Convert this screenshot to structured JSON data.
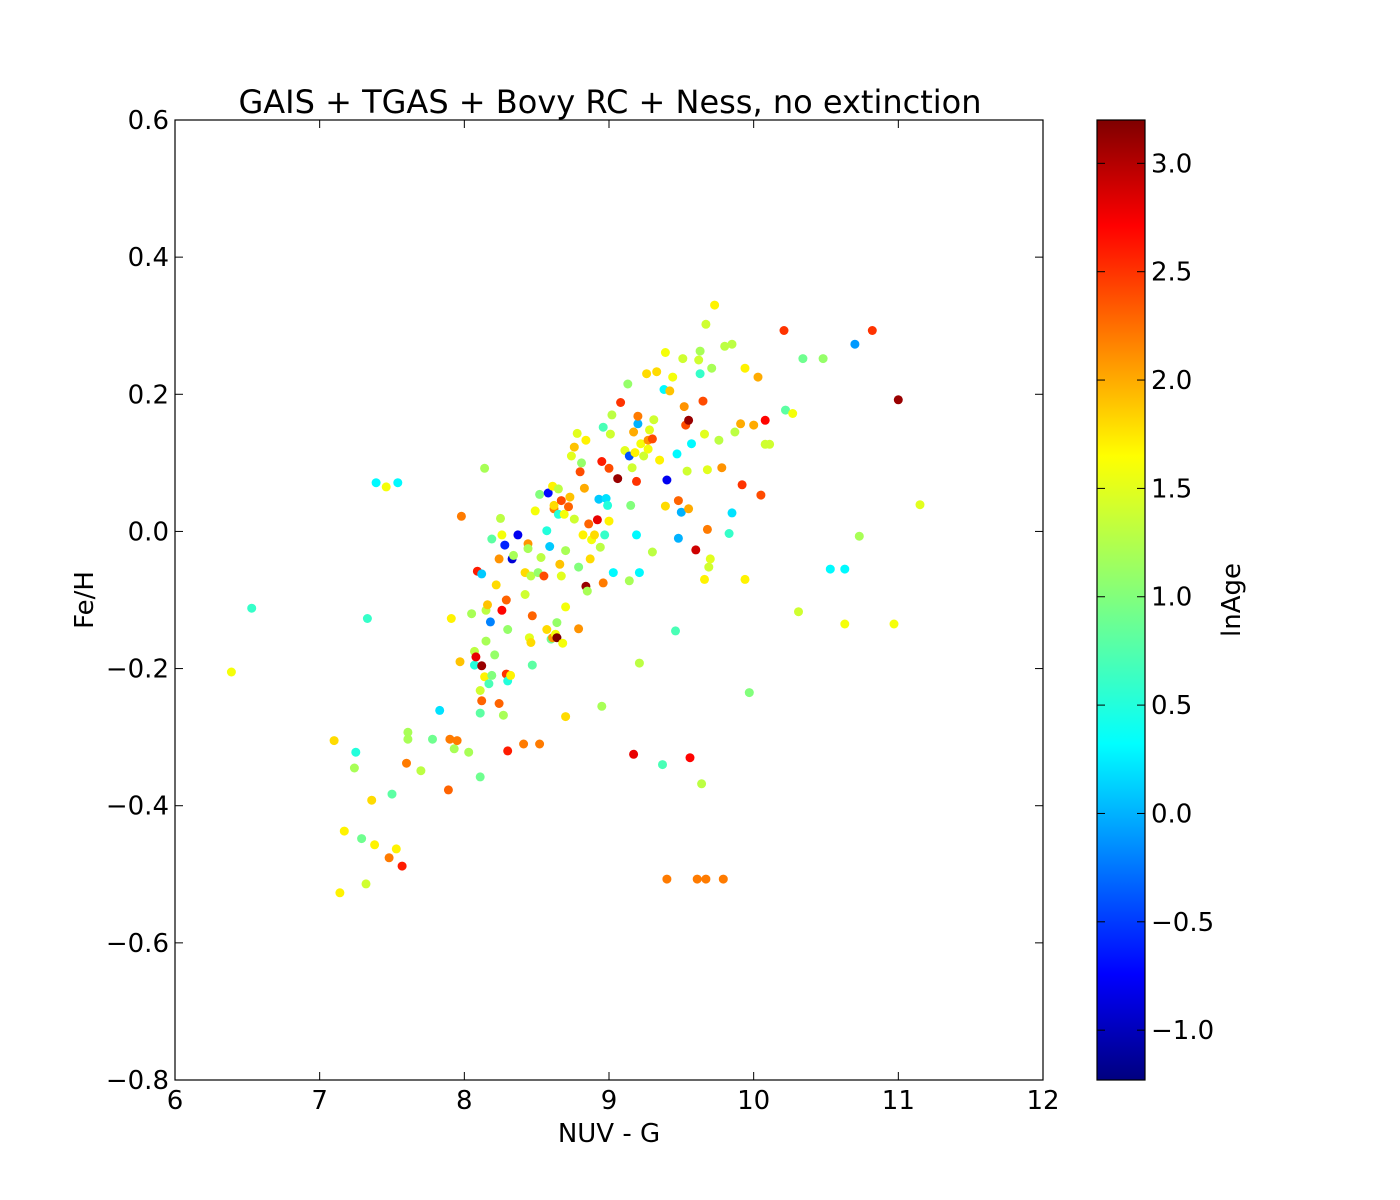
{
  "chart_data": {
    "type": "scatter",
    "title": "GAIS + TGAS + Bovy RC + Ness, no extinction",
    "xlabel": "NUV - G",
    "ylabel": "Fe/H",
    "xlim": [
      6,
      12
    ],
    "ylim": [
      -0.8,
      0.6
    ],
    "xticks": [
      6,
      7,
      8,
      9,
      10,
      11,
      12
    ],
    "yticks": [
      -0.8,
      -0.6,
      -0.4,
      -0.2,
      0.0,
      0.2,
      0.4,
      0.6
    ],
    "x_tick_labels": [
      "6",
      "7",
      "8",
      "9",
      "10",
      "11",
      "12"
    ],
    "y_tick_labels": [
      "−0.8",
      "−0.6",
      "−0.4",
      "−0.2",
      "0.0",
      "0.2",
      "0.4",
      "0.6"
    ],
    "grid": false,
    "colorbar": {
      "label": "lnAge",
      "range": [
        -1.23,
        3.2
      ],
      "ticks": [
        -1.0,
        -0.5,
        0.0,
        0.5,
        1.0,
        1.5,
        2.0,
        2.5,
        3.0
      ],
      "tick_labels": [
        "−1.0",
        "−0.5",
        "0.0",
        "0.5",
        "1.0",
        "1.5",
        "2.0",
        "2.5",
        "3.0"
      ],
      "colormap": "jet",
      "colormap_stops": [
        "#00007f",
        "#0000ff",
        "#00ffff",
        "#7fff7f",
        "#ffff00",
        "#ff0000",
        "#7f0000"
      ]
    },
    "points": [
      [
        6.39,
        -0.205,
        1.6
      ],
      [
        6.53,
        -0.112,
        0.6
      ],
      [
        7.1,
        -0.305,
        1.8
      ],
      [
        7.14,
        -0.527,
        1.7
      ],
      [
        7.17,
        -0.437,
        1.7
      ],
      [
        7.24,
        -0.345,
        1.2
      ],
      [
        7.25,
        -0.322,
        0.5
      ],
      [
        7.29,
        -0.448,
        0.9
      ],
      [
        7.32,
        -0.514,
        1.4
      ],
      [
        7.33,
        -0.127,
        0.6
      ],
      [
        7.36,
        -0.392,
        1.8
      ],
      [
        7.38,
        -0.457,
        1.7
      ],
      [
        7.39,
        0.071,
        0.3
      ],
      [
        7.46,
        0.065,
        1.6
      ],
      [
        7.48,
        -0.476,
        2.2
      ],
      [
        7.5,
        -0.383,
        0.8
      ],
      [
        7.53,
        -0.463,
        1.7
      ],
      [
        7.54,
        0.071,
        0.3
      ],
      [
        7.57,
        -0.488,
        2.6
      ],
      [
        7.6,
        -0.338,
        2.2
      ],
      [
        7.61,
        -0.293,
        1.2
      ],
      [
        7.61,
        -0.303,
        1.2
      ],
      [
        7.7,
        -0.349,
        1.3
      ],
      [
        7.78,
        -0.303,
        0.9
      ],
      [
        7.83,
        -0.261,
        0.2
      ],
      [
        7.89,
        -0.377,
        2.3
      ],
      [
        7.9,
        -0.303,
        2.2
      ],
      [
        7.91,
        -0.127,
        1.7
      ],
      [
        7.93,
        -0.317,
        1.2
      ],
      [
        7.95,
        -0.305,
        2.2
      ],
      [
        7.97,
        -0.19,
        1.9
      ],
      [
        7.98,
        0.022,
        2.2
      ],
      [
        8.03,
        -0.322,
        1.2
      ],
      [
        8.05,
        -0.12,
        1.2
      ],
      [
        8.07,
        -0.175,
        1.3
      ],
      [
        8.07,
        -0.195,
        0.5
      ],
      [
        8.08,
        -0.183,
        2.8
      ],
      [
        8.09,
        -0.058,
        2.6
      ],
      [
        8.11,
        -0.232,
        1.4
      ],
      [
        8.11,
        -0.265,
        0.8
      ],
      [
        8.11,
        -0.358,
        0.9
      ],
      [
        8.12,
        -0.062,
        0.1
      ],
      [
        8.12,
        -0.247,
        2.3
      ],
      [
        8.12,
        -0.196,
        3.1
      ],
      [
        8.14,
        -0.212,
        1.7
      ],
      [
        8.14,
        0.092,
        1.2
      ],
      [
        8.15,
        -0.115,
        1.3
      ],
      [
        8.15,
        -0.16,
        1.2
      ],
      [
        8.16,
        -0.107,
        1.9
      ],
      [
        8.17,
        -0.222,
        0.7
      ],
      [
        8.18,
        -0.132,
        -0.2
      ],
      [
        8.19,
        -0.21,
        1.0
      ],
      [
        8.19,
        -0.011,
        0.8
      ],
      [
        8.21,
        -0.18,
        1.1
      ],
      [
        8.22,
        -0.078,
        1.8
      ],
      [
        8.24,
        -0.251,
        2.3
      ],
      [
        8.24,
        -0.04,
        2.1
      ],
      [
        8.25,
        0.019,
        1.3
      ],
      [
        8.26,
        -0.115,
        2.7
      ],
      [
        8.26,
        -0.005,
        1.6
      ],
      [
        8.27,
        -0.268,
        1.2
      ],
      [
        8.28,
        -0.02,
        -0.6
      ],
      [
        8.29,
        -0.1,
        2.3
      ],
      [
        8.29,
        -0.208,
        2.5
      ],
      [
        8.3,
        -0.143,
        1.1
      ],
      [
        8.3,
        -0.218,
        0.5
      ],
      [
        8.3,
        -0.32,
        2.6
      ],
      [
        8.32,
        -0.21,
        1.7
      ],
      [
        8.33,
        -0.04,
        -0.9
      ],
      [
        8.34,
        -0.035,
        1.2
      ],
      [
        8.37,
        -0.005,
        -0.8
      ],
      [
        8.41,
        -0.31,
        2.2
      ],
      [
        8.42,
        -0.06,
        1.8
      ],
      [
        8.42,
        -0.092,
        1.4
      ],
      [
        8.44,
        -0.018,
        2.1
      ],
      [
        8.44,
        -0.025,
        1.2
      ],
      [
        8.45,
        -0.155,
        1.5
      ],
      [
        8.46,
        -0.162,
        1.8
      ],
      [
        8.46,
        -0.065,
        1.3
      ],
      [
        8.47,
        -0.123,
        2.3
      ],
      [
        8.47,
        -0.195,
        0.8
      ],
      [
        8.49,
        0.03,
        1.6
      ],
      [
        8.51,
        -0.06,
        1.1
      ],
      [
        8.52,
        -0.31,
        2.2
      ],
      [
        8.52,
        0.054,
        1.0
      ],
      [
        8.53,
        -0.038,
        1.3
      ],
      [
        8.55,
        -0.065,
        2.4
      ],
      [
        8.57,
        -0.143,
        1.8
      ],
      [
        8.57,
        0.001,
        0.5
      ],
      [
        8.58,
        0.056,
        -0.7
      ],
      [
        8.59,
        -0.022,
        0.1
      ],
      [
        8.6,
        -0.157,
        0.9
      ],
      [
        8.61,
        -0.155,
        2.1
      ],
      [
        8.61,
        0.066,
        1.7
      ],
      [
        8.62,
        0.033,
        2.2
      ],
      [
        8.62,
        0.038,
        1.8
      ],
      [
        8.63,
        -0.15,
        1.6
      ],
      [
        8.64,
        -0.133,
        1.1
      ],
      [
        8.64,
        -0.155,
        3.2
      ],
      [
        8.65,
        0.062,
        1.3
      ],
      [
        8.65,
        0.025,
        0.5
      ],
      [
        8.66,
        -0.048,
        1.9
      ],
      [
        8.67,
        0.045,
        2.4
      ],
      [
        8.67,
        -0.065,
        1.5
      ],
      [
        8.68,
        -0.163,
        1.6
      ],
      [
        8.69,
        0.025,
        1.6
      ],
      [
        8.7,
        -0.11,
        1.6
      ],
      [
        8.7,
        -0.27,
        1.8
      ],
      [
        8.7,
        -0.028,
        1.2
      ],
      [
        8.72,
        0.036,
        2.3
      ],
      [
        8.73,
        0.05,
        1.9
      ],
      [
        8.74,
        0.11,
        1.5
      ],
      [
        8.76,
        0.123,
        1.9
      ],
      [
        8.76,
        0.018,
        1.4
      ],
      [
        8.78,
        0.143,
        1.5
      ],
      [
        8.79,
        -0.142,
        2.1
      ],
      [
        8.79,
        -0.052,
        1.0
      ],
      [
        8.8,
        0.087,
        2.4
      ],
      [
        8.81,
        0.1,
        1.1
      ],
      [
        8.82,
        -0.005,
        1.7
      ],
      [
        8.83,
        0.063,
        2.0
      ],
      [
        8.84,
        -0.08,
        3.1
      ],
      [
        8.84,
        0.133,
        1.7
      ],
      [
        8.85,
        -0.087,
        1.2
      ],
      [
        8.86,
        0.011,
        2.3
      ],
      [
        8.87,
        -0.04,
        1.8
      ],
      [
        8.88,
        -0.012,
        1.6
      ],
      [
        8.9,
        -0.005,
        1.8
      ],
      [
        8.92,
        0.017,
        2.8
      ],
      [
        8.93,
        0.047,
        0.1
      ],
      [
        8.94,
        -0.023,
        1.3
      ],
      [
        8.95,
        -0.255,
        1.2
      ],
      [
        8.95,
        0.102,
        2.6
      ],
      [
        8.96,
        -0.075,
        2.2
      ],
      [
        8.96,
        0.152,
        0.7
      ],
      [
        8.97,
        -0.005,
        0.6
      ],
      [
        8.98,
        0.048,
        0.2
      ],
      [
        8.99,
        0.038,
        0.5
      ],
      [
        9.0,
        0.015,
        1.7
      ],
      [
        9.0,
        0.092,
        2.4
      ],
      [
        9.01,
        0.142,
        1.4
      ],
      [
        9.02,
        0.17,
        1.3
      ],
      [
        9.03,
        -0.06,
        0.3
      ],
      [
        9.06,
        0.077,
        3.1
      ],
      [
        9.08,
        0.188,
        2.5
      ],
      [
        9.11,
        0.118,
        1.5
      ],
      [
        9.13,
        0.215,
        1.1
      ],
      [
        9.14,
        -0.072,
        1.2
      ],
      [
        9.14,
        0.11,
        -0.4
      ],
      [
        9.15,
        0.038,
        1.0
      ],
      [
        9.16,
        0.093,
        1.4
      ],
      [
        9.17,
        0.145,
        2.0
      ],
      [
        9.17,
        -0.325,
        2.8
      ],
      [
        9.18,
        0.115,
        1.7
      ],
      [
        9.19,
        0.073,
        2.5
      ],
      [
        9.19,
        -0.005,
        0.3
      ],
      [
        9.2,
        0.157,
        0.0
      ],
      [
        9.2,
        0.168,
        2.2
      ],
      [
        9.21,
        -0.06,
        0.3
      ],
      [
        9.21,
        -0.192,
        1.3
      ],
      [
        9.22,
        0.128,
        1.6
      ],
      [
        9.24,
        0.11,
        1.4
      ],
      [
        9.26,
        0.23,
        1.8
      ],
      [
        9.27,
        0.133,
        2.1
      ],
      [
        9.27,
        0.12,
        1.6
      ],
      [
        9.28,
        0.148,
        1.5
      ],
      [
        9.3,
        0.135,
        2.4
      ],
      [
        9.3,
        -0.03,
        1.3
      ],
      [
        9.31,
        0.163,
        1.4
      ],
      [
        9.33,
        0.233,
        1.8
      ],
      [
        9.35,
        0.104,
        1.7
      ],
      [
        9.37,
        -0.34,
        0.7
      ],
      [
        9.38,
        0.207,
        0.3
      ],
      [
        9.39,
        0.261,
        1.6
      ],
      [
        9.39,
        0.037,
        1.8
      ],
      [
        9.4,
        0.075,
        -0.8
      ],
      [
        9.4,
        -0.507,
        2.2
      ],
      [
        9.42,
        0.205,
        1.9
      ],
      [
        9.44,
        0.225,
        1.6
      ],
      [
        9.46,
        -0.145,
        0.7
      ],
      [
        9.47,
        0.113,
        0.3
      ],
      [
        9.48,
        0.045,
        2.3
      ],
      [
        9.48,
        -0.01,
        0.0
      ],
      [
        9.5,
        0.028,
        0.0
      ],
      [
        9.51,
        0.252,
        1.4
      ],
      [
        9.52,
        0.182,
        2.1
      ],
      [
        9.53,
        0.155,
        2.4
      ],
      [
        9.54,
        0.088,
        1.4
      ],
      [
        9.55,
        0.162,
        3.1
      ],
      [
        9.55,
        0.033,
        2.0
      ],
      [
        9.56,
        -0.33,
        2.7
      ],
      [
        9.57,
        0.128,
        0.3
      ],
      [
        9.6,
        -0.027,
        2.9
      ],
      [
        9.61,
        -0.507,
        2.2
      ],
      [
        9.62,
        0.25,
        1.4
      ],
      [
        9.63,
        0.263,
        1.2
      ],
      [
        9.63,
        0.23,
        0.6
      ],
      [
        9.64,
        -0.368,
        1.3
      ],
      [
        9.65,
        0.19,
        2.4
      ],
      [
        9.66,
        0.142,
        1.5
      ],
      [
        9.66,
        -0.07,
        1.7
      ],
      [
        9.67,
        -0.507,
        2.2
      ],
      [
        9.67,
        0.302,
        1.4
      ],
      [
        9.68,
        0.003,
        2.2
      ],
      [
        9.68,
        0.09,
        1.5
      ],
      [
        9.69,
        -0.052,
        1.4
      ],
      [
        9.7,
        -0.04,
        1.5
      ],
      [
        9.71,
        0.238,
        1.2
      ],
      [
        9.73,
        0.33,
        1.7
      ],
      [
        9.76,
        0.133,
        1.3
      ],
      [
        9.78,
        0.093,
        2.1
      ],
      [
        9.79,
        -0.507,
        2.2
      ],
      [
        9.8,
        0.27,
        1.3
      ],
      [
        9.83,
        -0.003,
        0.6
      ],
      [
        9.85,
        0.273,
        1.3
      ],
      [
        9.85,
        0.027,
        0.2
      ],
      [
        9.87,
        0.145,
        1.3
      ],
      [
        9.91,
        0.157,
        2.0
      ],
      [
        9.92,
        0.068,
        2.5
      ],
      [
        9.94,
        0.238,
        1.7
      ],
      [
        9.94,
        -0.07,
        1.7
      ],
      [
        9.97,
        -0.235,
        1.0
      ],
      [
        10.0,
        0.155,
        2.0
      ],
      [
        10.03,
        0.225,
        2.0
      ],
      [
        10.05,
        0.053,
        2.4
      ],
      [
        10.08,
        0.162,
        2.7
      ],
      [
        10.08,
        0.127,
        1.4
      ],
      [
        10.11,
        0.127,
        1.4
      ],
      [
        10.21,
        0.293,
        2.5
      ],
      [
        10.22,
        0.177,
        0.8
      ],
      [
        10.27,
        0.172,
        1.6
      ],
      [
        10.31,
        -0.117,
        1.4
      ],
      [
        10.34,
        0.252,
        0.9
      ],
      [
        10.48,
        0.252,
        1.1
      ],
      [
        10.53,
        -0.055,
        0.3
      ],
      [
        10.63,
        -0.135,
        1.6
      ],
      [
        10.63,
        -0.055,
        0.3
      ],
      [
        10.7,
        0.273,
        -0.1
      ],
      [
        10.73,
        -0.007,
        1.2
      ],
      [
        10.82,
        0.293,
        2.5
      ],
      [
        10.97,
        -0.135,
        1.6
      ],
      [
        11.0,
        0.192,
        3.1
      ],
      [
        11.15,
        0.039,
        1.5
      ]
    ]
  }
}
